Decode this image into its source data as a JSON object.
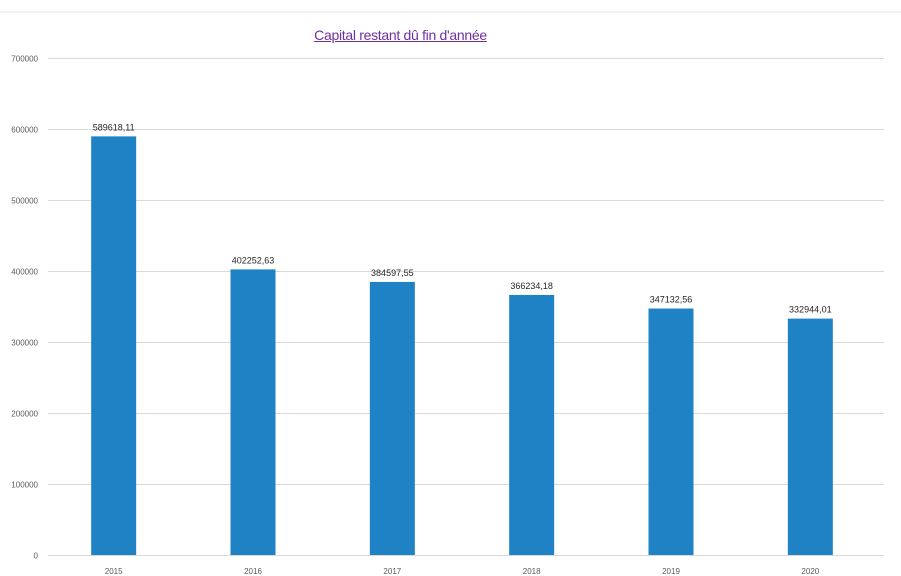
{
  "chart_data": {
    "type": "bar",
    "title": "Capital restant dû fin d'année",
    "categories": [
      "2015",
      "2016",
      "2017",
      "2018",
      "2019",
      "2020"
    ],
    "series": [
      {
        "values": [
          589618.11,
          402252.63,
          384597.55,
          366234.18,
          347132.56,
          332944.01
        ],
        "value_labels": [
          "589618,11",
          "402252,63",
          "384597,55",
          "366234,18",
          "347132,56",
          "332944,01"
        ]
      }
    ],
    "y_ticks": [
      "0",
      "100000",
      "200000",
      "300000",
      "400000",
      "500000",
      "600000",
      "700000"
    ],
    "ylim": [
      0,
      700000
    ],
    "xlabel": "",
    "ylabel": "",
    "grid": true,
    "legend": "none",
    "colors": {
      "bar": "#1e82c4",
      "grid": "#d9d9d9",
      "axis_text": "#595959",
      "label_text": "#262626",
      "title": "#7030a0"
    }
  }
}
